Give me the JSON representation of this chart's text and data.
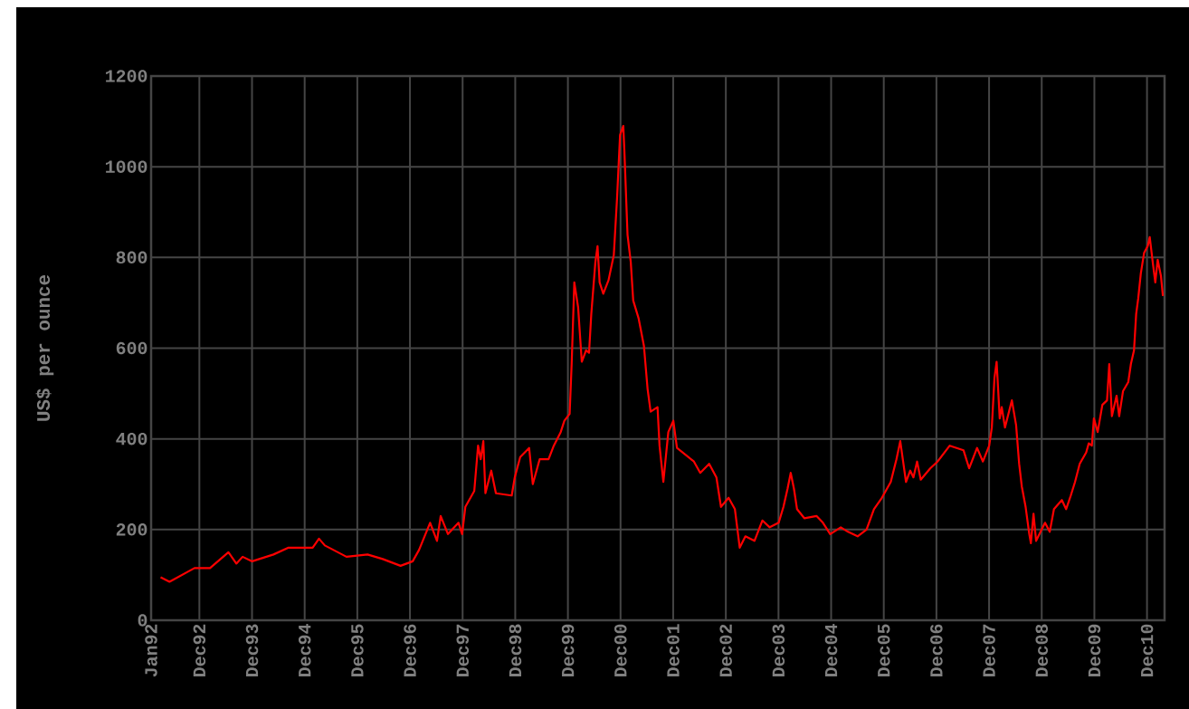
{
  "chart_data": {
    "type": "line",
    "ylabel": "US$ per ounce",
    "x": [
      "1992-03-06",
      "1992-05-07",
      "1992-10-28",
      "1993-02-14",
      "1993-06-20",
      "1993-08-14",
      "1993-09-27",
      "1993-12-02",
      "1994-04-28",
      "1994-08-11",
      "1995-01-26",
      "1995-03-09",
      "1995-04-19",
      "1995-09-17",
      "1996-02-11",
      "1996-05-25",
      "1996-09-27",
      "1996-12-20",
      "1997-02-03",
      "1997-04-19",
      "1997-06-06",
      "1997-07-01",
      "1997-08-21",
      "1997-11-03",
      "1997-11-28",
      "1997-12-20",
      "1998-02-21",
      "1998-03-17",
      "1998-04-05",
      "1998-04-23",
      "1998-05-07",
      "1998-06-17",
      "1998-07-19",
      "1998-11-07",
      "1998-11-28",
      "1999-01-05",
      "1999-03-06",
      "1999-04-01",
      "1999-05-18",
      "1999-07-19",
      "1999-08-25",
      "1999-10-12",
      "1999-11-07",
      "1999-12-13",
      "1999-12-27",
      "2000-01-15",
      "2000-02-11",
      "2000-03-06",
      "2000-04-05",
      "2000-04-26",
      "2000-05-11",
      "2000-06-09",
      "2000-06-24",
      "2000-07-08",
      "2000-08-03",
      "2000-09-09",
      "2000-10-15",
      "2000-11-07",
      "2000-11-28",
      "2000-12-20",
      "2000-12-27",
      "2001-01-19",
      "2001-02-11",
      "2001-02-28",
      "2001-04-05",
      "2001-05-11",
      "2001-06-06",
      "2001-06-27",
      "2001-08-14",
      "2001-08-28",
      "2001-09-24",
      "2001-10-28",
      "2001-12-02",
      "2001-12-27",
      "2002-04-23",
      "2002-06-06",
      "2002-08-07",
      "2002-09-27",
      "2002-10-28",
      "2002-12-20",
      "2003-02-03",
      "2003-03-06",
      "2003-04-15",
      "2003-06-17",
      "2003-08-11",
      "2003-10-01",
      "2003-12-02",
      "2004-01-05",
      "2004-02-03",
      "2004-02-25",
      "2004-03-17",
      "2004-04-08",
      "2004-05-28",
      "2004-08-21",
      "2004-10-05",
      "2004-11-25",
      "2005-02-07",
      "2005-03-27",
      "2005-06-02",
      "2005-08-03",
      "2005-09-24",
      "2005-11-18",
      "2006-01-19",
      "2006-02-28",
      "2006-03-24",
      "2006-05-03",
      "2006-06-02",
      "2006-06-24",
      "2006-07-19",
      "2006-08-14",
      "2006-10-19",
      "2006-12-09",
      "2007-03-02",
      "2007-06-06",
      "2007-07-15",
      "2007-09-09",
      "2007-10-19",
      "2007-12-02",
      "2007-12-20",
      "2008-01-08",
      "2008-01-23",
      "2008-02-14",
      "2008-02-28",
      "2008-03-20",
      "2008-05-07",
      "2008-06-06",
      "2008-06-27",
      "2008-07-15",
      "2008-08-11",
      "2008-09-06",
      "2008-09-17",
      "2008-10-05",
      "2008-10-23",
      "2008-12-24",
      "2009-01-26",
      "2009-02-25",
      "2009-04-19",
      "2009-05-18",
      "2009-06-20",
      "2009-07-19",
      "2009-08-21",
      "2009-10-05",
      "2009-10-23",
      "2009-11-14",
      "2009-11-28",
      "2009-12-24",
      "2010-01-26",
      "2010-02-28",
      "2010-03-13",
      "2010-04-01",
      "2010-05-03",
      "2010-05-21",
      "2010-06-17",
      "2010-07-23",
      "2010-08-11",
      "2010-09-02",
      "2010-09-17",
      "2010-10-01",
      "2010-10-19",
      "2010-11-11",
      "2010-12-06",
      "2010-12-20",
      "2011-01-12",
      "2011-01-28",
      "2011-02-14",
      "2011-03-06",
      "2011-03-20"
    ],
    "series": [
      {
        "color": "#ff0000",
        "values": [
          95,
          85,
          115,
          115,
          150,
          125,
          140,
          130,
          145,
          160,
          160,
          180,
          165,
          140,
          145,
          135,
          120,
          130,
          155,
          215,
          175,
          230,
          190,
          215,
          190,
          250,
          285,
          385,
          355,
          395,
          280,
          330,
          280,
          275,
          315,
          360,
          380,
          300,
          355,
          355,
          385,
          415,
          440,
          455,
          565,
          745,
          690,
          570,
          595,
          590,
          675,
          790,
          825,
          745,
          720,
          750,
          805,
          930,
          1070,
          1090,
          1040,
          850,
          790,
          705,
          665,
          605,
          510,
          460,
          470,
          385,
          305,
          415,
          440,
          380,
          350,
          325,
          345,
          315,
          250,
          270,
          245,
          160,
          185,
          175,
          220,
          205,
          215,
          250,
          290,
          325,
          290,
          245,
          225,
          230,
          215,
          190,
          205,
          195,
          185,
          200,
          245,
          270,
          305,
          355,
          395,
          305,
          330,
          315,
          350,
          310,
          335,
          350,
          385,
          375,
          335,
          380,
          350,
          385,
          425,
          535,
          570,
          445,
          470,
          425,
          485,
          430,
          345,
          295,
          250,
          190,
          170,
          235,
          175,
          215,
          195,
          245,
          265,
          245,
          275,
          305,
          345,
          370,
          390,
          385,
          445,
          415,
          475,
          485,
          565,
          450,
          495,
          450,
          505,
          525,
          565,
          595,
          675,
          710,
          765,
          810,
          825,
          845,
          785,
          745,
          795,
          760,
          715
        ]
      }
    ],
    "xlim": [
      "1992-01-01",
      "2011-04-01"
    ],
    "xticks": [
      {
        "value": "1992-01-01",
        "label": "Jan92"
      },
      {
        "value": "1992-12-01",
        "label": "Dec92"
      },
      {
        "value": "1993-12-01",
        "label": "Dec93"
      },
      {
        "value": "1994-12-01",
        "label": "Dec94"
      },
      {
        "value": "1995-12-01",
        "label": "Dec95"
      },
      {
        "value": "1996-12-01",
        "label": "Dec96"
      },
      {
        "value": "1997-12-01",
        "label": "Dec97"
      },
      {
        "value": "1998-12-01",
        "label": "Dec98"
      },
      {
        "value": "1999-12-01",
        "label": "Dec99"
      },
      {
        "value": "2000-12-01",
        "label": "Dec00"
      },
      {
        "value": "2001-12-01",
        "label": "Dec01"
      },
      {
        "value": "2002-12-01",
        "label": "Dec02"
      },
      {
        "value": "2003-12-01",
        "label": "Dec03"
      },
      {
        "value": "2004-12-01",
        "label": "Dec04"
      },
      {
        "value": "2005-12-01",
        "label": "Dec05"
      },
      {
        "value": "2006-12-01",
        "label": "Dec06"
      },
      {
        "value": "2007-12-01",
        "label": "Dec07"
      },
      {
        "value": "2008-12-01",
        "label": "Dec08"
      },
      {
        "value": "2009-12-01",
        "label": "Dec09"
      },
      {
        "value": "2010-12-01",
        "label": "Dec10"
      }
    ],
    "ylim": [
      0,
      1200
    ],
    "yticks": [
      0,
      200,
      400,
      600,
      800,
      1000,
      1200
    ],
    "grid": true,
    "marker": "none",
    "line_style": "solid"
  }
}
